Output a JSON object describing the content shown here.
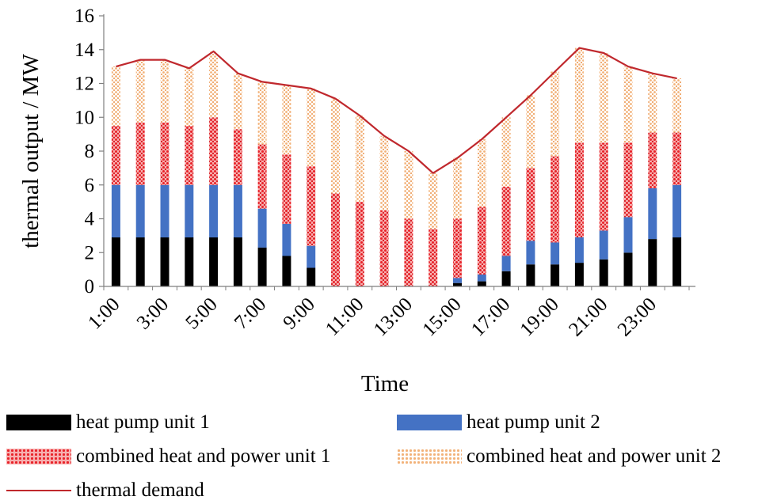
{
  "chart_data": {
    "type": "bar",
    "stacked": true,
    "categories": [
      "1:00",
      "2:00",
      "3:00",
      "4:00",
      "5:00",
      "6:00",
      "7:00",
      "8:00",
      "9:00",
      "10:00",
      "11:00",
      "12:00",
      "13:00",
      "14:00",
      "15:00",
      "16:00",
      "17:00",
      "18:00",
      "19:00",
      "20:00",
      "21:00",
      "22:00",
      "23:00",
      "24:00"
    ],
    "tick_labels": [
      "1:00",
      "3:00",
      "5:00",
      "7:00",
      "9:00",
      "11:00",
      "13:00",
      "15:00",
      "17:00",
      "19:00",
      "21:00",
      "23:00"
    ],
    "series": [
      {
        "name": "heat pump unit 1",
        "color": "#000000",
        "values": [
          2.9,
          2.9,
          2.9,
          2.9,
          2.9,
          2.9,
          2.3,
          1.8,
          1.1,
          0,
          0,
          0,
          0,
          0,
          0.2,
          0.3,
          0.9,
          1.3,
          1.3,
          1.4,
          1.6,
          2.0,
          2.8,
          2.9
        ]
      },
      {
        "name": "heat pump unit 2",
        "color": "#4472c4",
        "values": [
          3.1,
          3.1,
          3.1,
          3.1,
          3.1,
          3.1,
          2.3,
          1.9,
          1.3,
          0,
          0,
          0,
          0,
          0,
          0.3,
          0.4,
          0.9,
          1.4,
          1.3,
          1.5,
          1.7,
          2.1,
          3.0,
          3.1
        ]
      },
      {
        "name": "combined heat and power unit 1",
        "color": "#e8232a",
        "values": [
          3.5,
          3.7,
          3.7,
          3.5,
          4.0,
          3.3,
          3.8,
          4.1,
          4.7,
          5.5,
          5.0,
          4.5,
          4.0,
          3.4,
          3.5,
          4.0,
          4.1,
          4.3,
          5.1,
          5.6,
          5.2,
          4.4,
          3.3,
          3.1
        ]
      },
      {
        "name": "combined heat and power unit 2",
        "color": "#f2b279",
        "values": [
          3.5,
          3.7,
          3.7,
          3.4,
          3.9,
          3.3,
          3.7,
          4.1,
          4.6,
          5.6,
          5.1,
          4.4,
          4.0,
          3.3,
          3.6,
          4.0,
          4.1,
          4.3,
          5.0,
          5.6,
          5.3,
          4.5,
          3.5,
          3.2
        ]
      }
    ],
    "line": {
      "name": "thermal demand",
      "color": "#c0282d",
      "values": [
        13.0,
        13.4,
        13.4,
        12.9,
        13.9,
        12.6,
        12.1,
        11.9,
        11.7,
        11.1,
        10.1,
        8.9,
        8.0,
        6.7,
        7.6,
        8.7,
        10.0,
        11.3,
        12.7,
        14.1,
        13.8,
        13.0,
        12.6,
        12.3
      ]
    },
    "title": "",
    "xlabel": "Time",
    "ylabel": "thermal output / MW",
    "ylim": [
      0,
      16
    ],
    "yticks": [
      0,
      2,
      4,
      6,
      8,
      10,
      12,
      14,
      16
    ],
    "legend_position": "bottom",
    "grid": false
  },
  "legend": {
    "items": [
      {
        "label": "heat pump unit 1",
        "color": "#000000",
        "style": "solid"
      },
      {
        "label": "heat pump unit 2",
        "color": "#4472c4",
        "style": "solid"
      },
      {
        "label": "combined heat and power unit 1",
        "color": "#e8232a",
        "style": "dots-red"
      },
      {
        "label": "combined heat and power unit 2",
        "color": "#f2b279",
        "style": "dots-orange"
      },
      {
        "label": "thermal demand",
        "color": "#c0282d",
        "style": "line"
      }
    ]
  }
}
